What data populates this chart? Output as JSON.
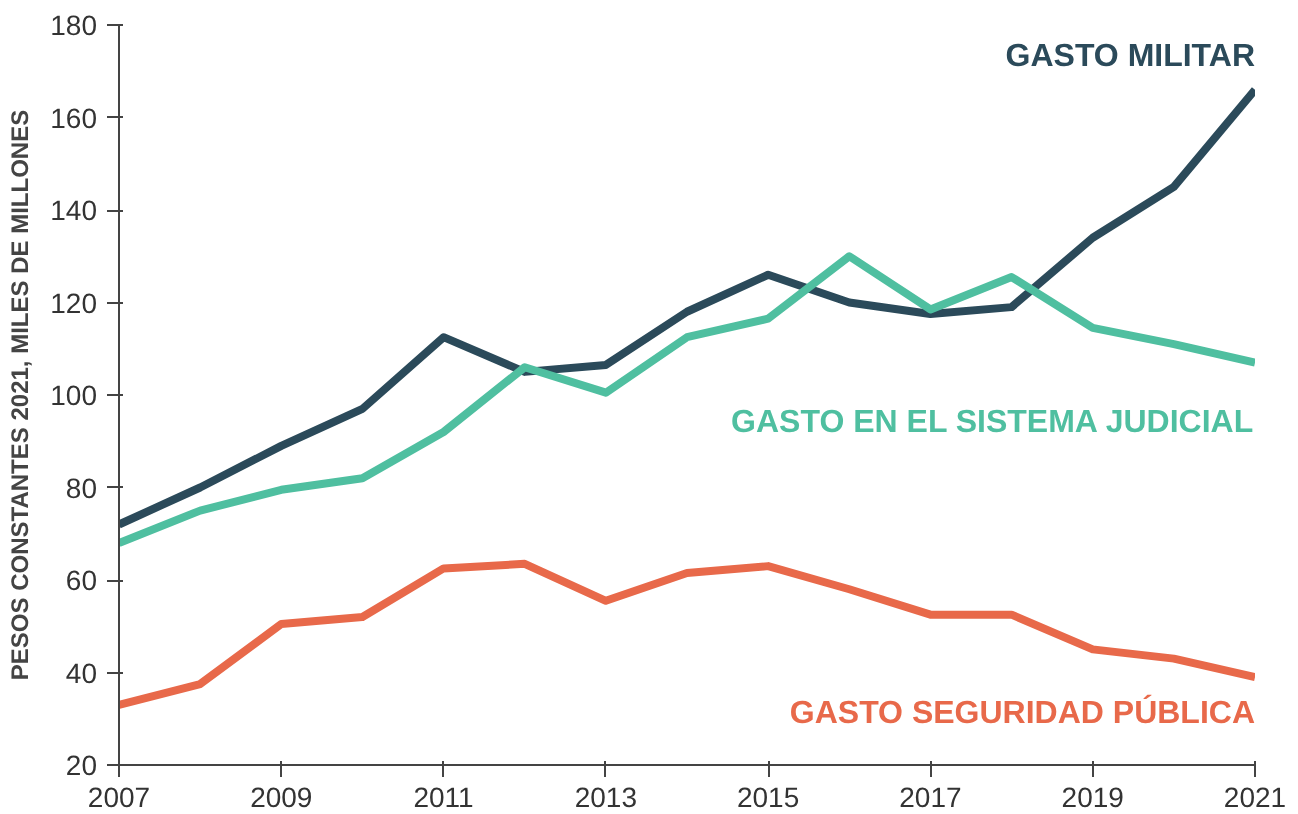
{
  "chart_data": {
    "type": "line",
    "ylabel": "PESOS CONSTANTES 2021, MILES DE MILLONES",
    "x": [
      2007,
      2008,
      2009,
      2010,
      2011,
      2012,
      2013,
      2014,
      2015,
      2016,
      2017,
      2018,
      2019,
      2020,
      2021
    ],
    "series": [
      {
        "name": "GASTO MILITAR",
        "color": "#2b4a5a",
        "values": [
          72,
          80,
          89,
          97,
          112.5,
          105,
          106.5,
          118,
          126,
          120,
          117.5,
          119,
          134,
          145,
          166
        ]
      },
      {
        "name": "GASTO EN EL SISTEMA JUDICIAL",
        "color": "#4fbfa0",
        "values": [
          68,
          75,
          79.5,
          82,
          92,
          106,
          100.5,
          112.5,
          116.5,
          130,
          118.5,
          125.5,
          114.5,
          111,
          107
        ]
      },
      {
        "name": "GASTO SEGURIDAD PÚBLICA",
        "color": "#e8694a",
        "values": [
          33,
          37.5,
          50.5,
          52,
          62.5,
          63.5,
          55.5,
          61.5,
          63,
          58,
          52.5,
          52.5,
          45,
          43,
          39
        ]
      }
    ],
    "xlim": [
      2007,
      2021
    ],
    "ylim": [
      20,
      180
    ],
    "xticks": [
      2007,
      2009,
      2011,
      2013,
      2015,
      2017,
      2019,
      2021
    ],
    "yticks": [
      20,
      40,
      60,
      80,
      100,
      120,
      140,
      160,
      180
    ],
    "grid": false,
    "marker": "none",
    "line_style": "solid"
  }
}
